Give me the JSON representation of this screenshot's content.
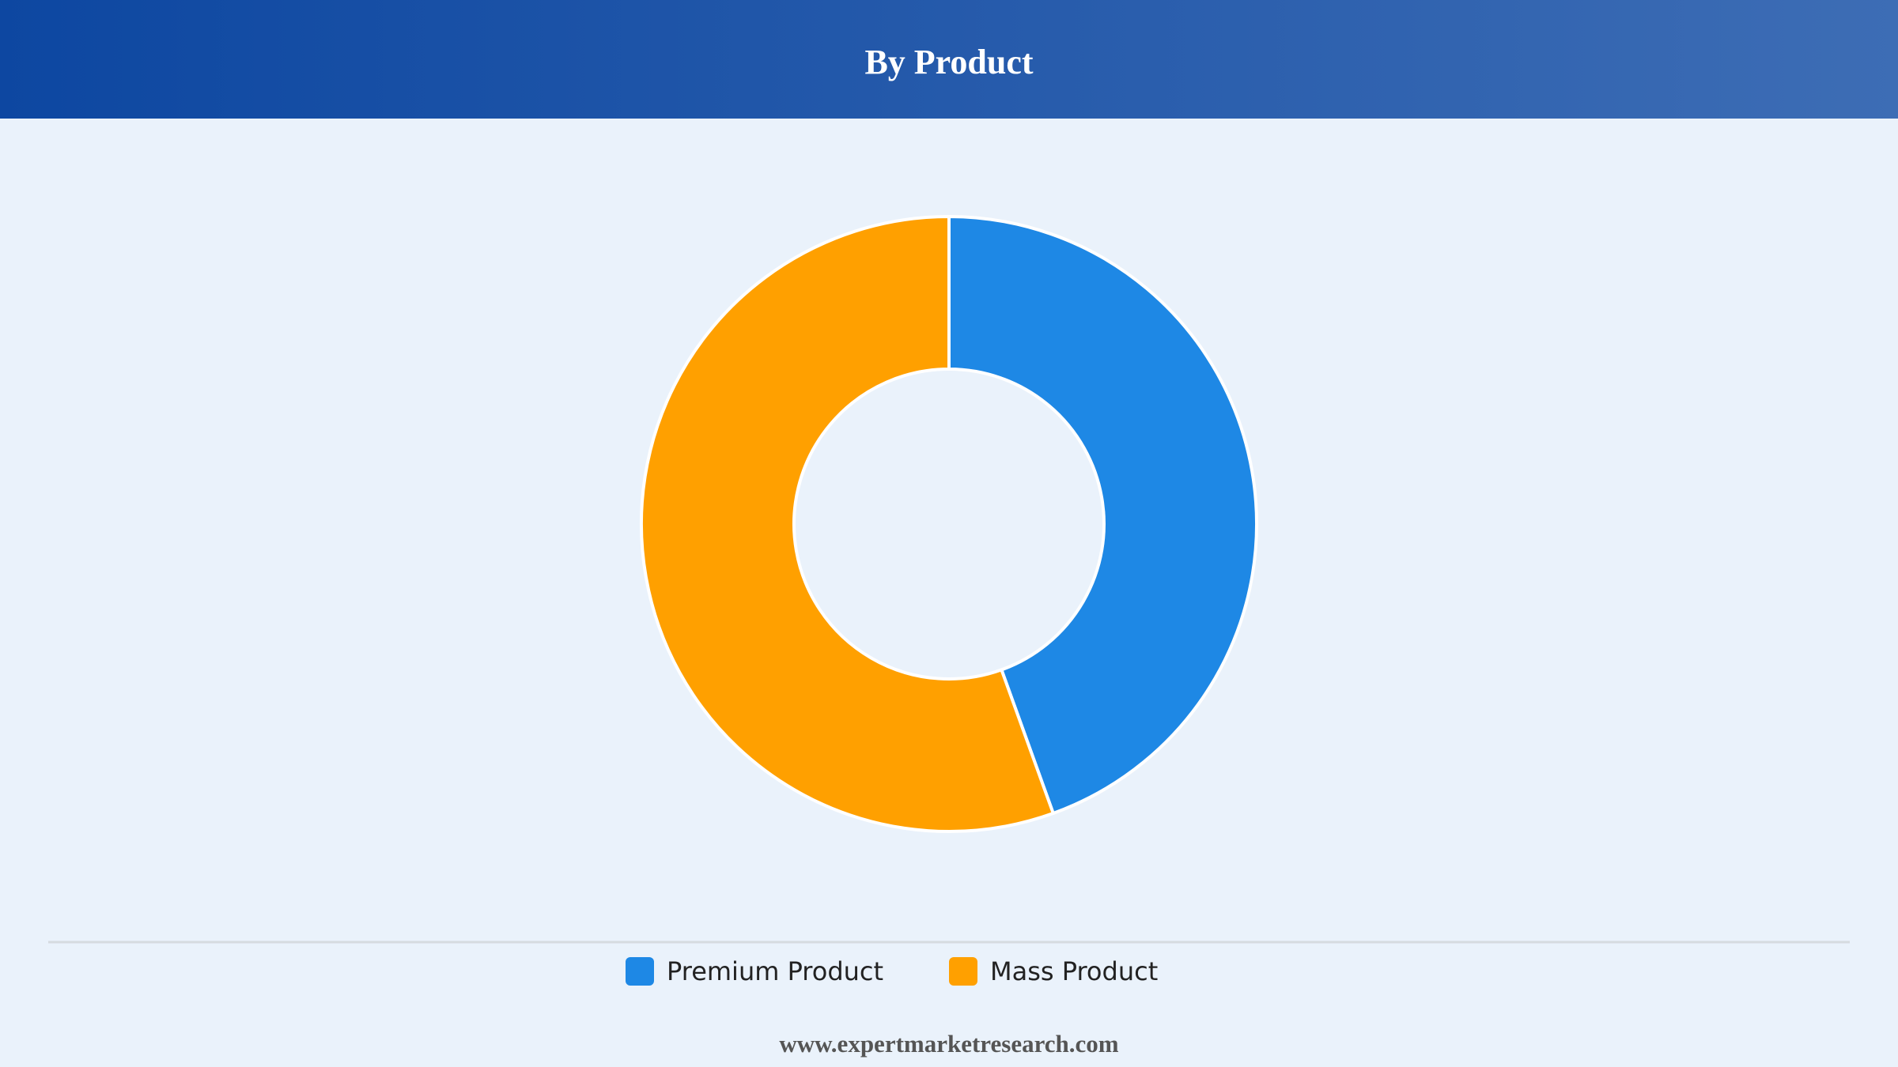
{
  "chart_data": {
    "type": "donut",
    "title": "By Product",
    "categories": [
      "Premium Product",
      "Mass Product"
    ],
    "values": [
      44.5,
      55.5
    ],
    "colors": [
      "#1e88e5",
      "#ffa000"
    ]
  },
  "footer": "www.expertmarketresearch.com"
}
